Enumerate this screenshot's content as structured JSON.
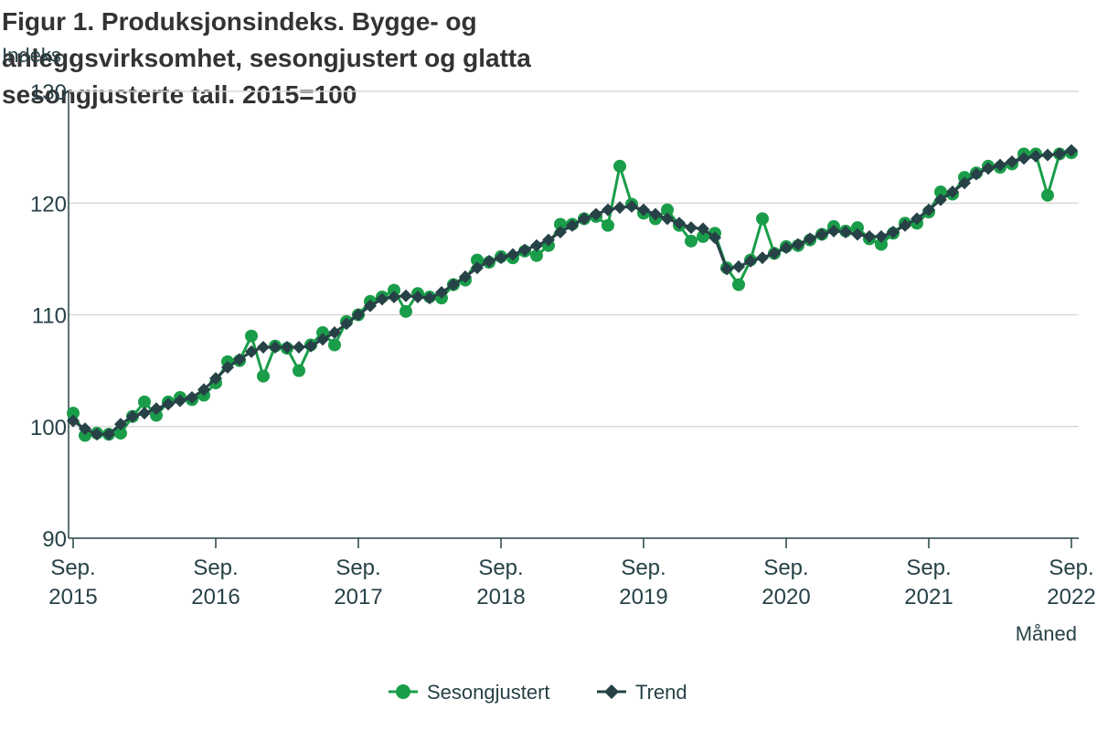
{
  "chart_data": {
    "type": "line",
    "title": "Figur 1. Produksjonsindeks. Bygge- og anleggsvirksomhet, sesongjustert og glatta sesongjusterte tall. 2015=100",
    "ylabel": "Indeks",
    "xlabel": "Måned",
    "ylim": [
      90,
      130
    ],
    "yticks": [
      90,
      100,
      110,
      120,
      130
    ],
    "x_start": "2015-09",
    "x_tick_labels": [
      {
        "month": "Sep.",
        "year": "2015"
      },
      {
        "month": "Sep.",
        "year": "2016"
      },
      {
        "month": "Sep.",
        "year": "2017"
      },
      {
        "month": "Sep.",
        "year": "2018"
      },
      {
        "month": "Sep.",
        "year": "2019"
      },
      {
        "month": "Sep.",
        "year": "2020"
      },
      {
        "month": "Sep.",
        "year": "2021"
      },
      {
        "month": "Sep.",
        "year": "2022"
      }
    ],
    "grid": true,
    "legend_position": "bottom",
    "series": [
      {
        "name": "Sesongjustert",
        "color": "#1a9d49",
        "marker": "circle",
        "values": [
          101.2,
          99.2,
          99.4,
          99.3,
          99.4,
          100.9,
          102.2,
          101.0,
          102.2,
          102.6,
          102.4,
          102.8,
          103.9,
          105.8,
          105.9,
          108.1,
          104.5,
          107.2,
          107.0,
          105.0,
          107.3,
          108.4,
          107.3,
          109.4,
          110.0,
          111.2,
          111.6,
          112.2,
          110.3,
          111.9,
          111.6,
          111.5,
          112.7,
          113.1,
          114.9,
          114.7,
          115.2,
          115.1,
          115.7,
          115.3,
          116.2,
          118.1,
          118.1,
          118.6,
          118.8,
          118.0,
          123.3,
          119.9,
          119.1,
          118.6,
          119.4,
          118.0,
          116.6,
          117.0,
          117.3,
          114.2,
          112.7,
          114.9,
          118.6,
          115.5,
          116.1,
          116.2,
          116.7,
          117.2,
          117.9,
          117.5,
          117.8,
          116.8,
          116.3,
          117.3,
          118.2,
          118.2,
          119.2,
          121.0,
          120.8,
          122.3,
          122.7,
          123.3,
          123.2,
          123.5,
          124.4,
          124.4,
          120.7,
          124.4,
          124.5
        ]
      },
      {
        "name": "Trend",
        "color": "#274247",
        "marker": "diamond",
        "values": [
          100.5,
          99.8,
          99.3,
          99.3,
          100.2,
          100.9,
          101.2,
          101.6,
          102.0,
          102.3,
          102.6,
          103.3,
          104.3,
          105.3,
          106.0,
          106.7,
          107.1,
          107.1,
          107.1,
          107.1,
          107.2,
          107.8,
          108.4,
          109.2,
          110.0,
          110.8,
          111.4,
          111.6,
          111.7,
          111.6,
          111.5,
          112.0,
          112.7,
          113.4,
          114.2,
          114.8,
          115.1,
          115.4,
          115.8,
          116.2,
          116.7,
          117.4,
          118.0,
          118.6,
          119.0,
          119.4,
          119.6,
          119.7,
          119.4,
          119.0,
          118.6,
          118.2,
          117.8,
          117.7,
          116.9,
          114.1,
          114.3,
          114.8,
          115.1,
          115.5,
          116.0,
          116.3,
          116.8,
          117.2,
          117.5,
          117.4,
          117.2,
          117.0,
          117.0,
          117.4,
          118.0,
          118.6,
          119.4,
          120.3,
          121.0,
          121.8,
          122.6,
          123.1,
          123.4,
          123.7,
          124.0,
          124.2,
          124.3,
          124.4,
          124.7
        ]
      }
    ]
  }
}
